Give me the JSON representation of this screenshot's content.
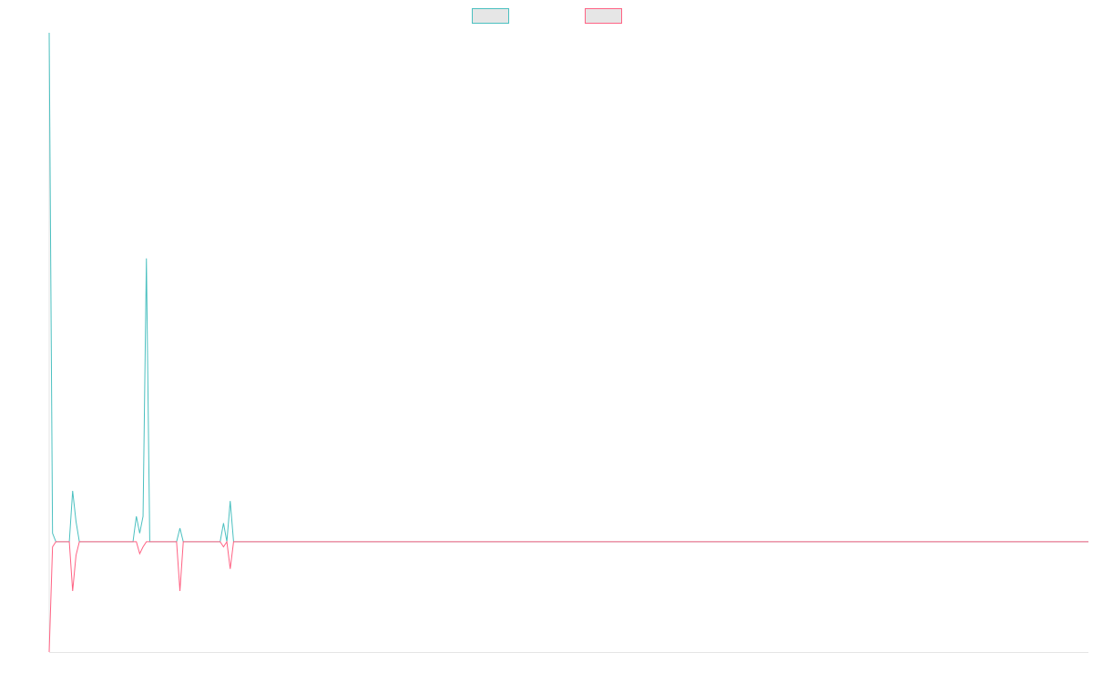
{
  "chart_data": {
    "type": "line",
    "title": "",
    "xlabel": "",
    "ylabel": "",
    "legend": {
      "placement": "top-center",
      "entries": [
        {
          "color": "#4bc0c0"
        },
        {
          "color": "#ff6384"
        }
      ]
    },
    "x": [
      0,
      1,
      2,
      3,
      4,
      5,
      6,
      7,
      8,
      9,
      10,
      11,
      12,
      13,
      14,
      15,
      16,
      17,
      18,
      19,
      20,
      21,
      22,
      23,
      24,
      25,
      26,
      27,
      28,
      29,
      30,
      31,
      32,
      33,
      34,
      35,
      36,
      37,
      38,
      39,
      40,
      41,
      42,
      43,
      44,
      45,
      46,
      47,
      48,
      49,
      50,
      51,
      52,
      53,
      54,
      55,
      56,
      57,
      58,
      59,
      60,
      61,
      62,
      63,
      64,
      65,
      66,
      67,
      68,
      69,
      70,
      71,
      72,
      73,
      74,
      75,
      76,
      77,
      78,
      79,
      80,
      81,
      82,
      83,
      84,
      85,
      86,
      87,
      88,
      89,
      90,
      91,
      92,
      93,
      94,
      95,
      96,
      97,
      98,
      99,
      100,
      101,
      102,
      103,
      104,
      105,
      106,
      107,
      108,
      109,
      110,
      111,
      112,
      113,
      114,
      115,
      116,
      117,
      118,
      119,
      120,
      121,
      122,
      123,
      124,
      125,
      126,
      127,
      128,
      129,
      130,
      131,
      132,
      133,
      134,
      135,
      136,
      137,
      138,
      139,
      140,
      141,
      142,
      143,
      144,
      145,
      146,
      147,
      148,
      149,
      150,
      151,
      152,
      153,
      154,
      155,
      156,
      157,
      158,
      159,
      160,
      161,
      162,
      163,
      164,
      165,
      166,
      167,
      168,
      169,
      170,
      171,
      172,
      173,
      174,
      175,
      176,
      177,
      178,
      179,
      180,
      181,
      182,
      183,
      184,
      185,
      186,
      187,
      188,
      189,
      190,
      191,
      192,
      193,
      194,
      195,
      196,
      197,
      198,
      199,
      200,
      201,
      202,
      203,
      204,
      205,
      206,
      207,
      208,
      209,
      210,
      211,
      212,
      213,
      214,
      215,
      216,
      217,
      218,
      219,
      220,
      221,
      222,
      223,
      224,
      225,
      226,
      227,
      228,
      229,
      230,
      231,
      232,
      233,
      234,
      235,
      236,
      237,
      238,
      239,
      240,
      241,
      242,
      243,
      244,
      245,
      246,
      247,
      248,
      249,
      250,
      251,
      252,
      253,
      254,
      255,
      256,
      257,
      258,
      259,
      260,
      261,
      262,
      263,
      264,
      265,
      266,
      267,
      268,
      269,
      270,
      271,
      272,
      273,
      274,
      275,
      276,
      277,
      278,
      279,
      280,
      281,
      282,
      283,
      284,
      285,
      286,
      287,
      288,
      289,
      290,
      291,
      292,
      293,
      294,
      295,
      296,
      297,
      298,
      299,
      300,
      301,
      302,
      303,
      304,
      305,
      306,
      307,
      308,
      309,
      310
    ],
    "series": [
      {
        "color": "#4bc0c0",
        "values": [
          300,
          5,
          0,
          0,
          0,
          0,
          0,
          30,
          12,
          0,
          0,
          0,
          0,
          0,
          0,
          0,
          0,
          0,
          0,
          0,
          0,
          0,
          0,
          0,
          0,
          0,
          15,
          5,
          15,
          167,
          0,
          0,
          0,
          0,
          0,
          0,
          0,
          0,
          0,
          8,
          0,
          0,
          0,
          0,
          0,
          0,
          0,
          0,
          0,
          0,
          0,
          0,
          11,
          0,
          24,
          0,
          0,
          0,
          0,
          0,
          0,
          0,
          0,
          0,
          0,
          0,
          0,
          0,
          0,
          0,
          0,
          0,
          0,
          0,
          0,
          0,
          0,
          0,
          0,
          0,
          0,
          0,
          0,
          0,
          0,
          0,
          0,
          0,
          0,
          0,
          0,
          0,
          0,
          0,
          0,
          0,
          0,
          0,
          0,
          0,
          0,
          0,
          0,
          0,
          0,
          0,
          0,
          0,
          0,
          0,
          0,
          0,
          0,
          0,
          0,
          0,
          0,
          0,
          0,
          0,
          0,
          0,
          0,
          0,
          0,
          0,
          0,
          0,
          0,
          0,
          0,
          0,
          0,
          0,
          0,
          0,
          0,
          0,
          0,
          0,
          0,
          0,
          0,
          0,
          0,
          0,
          0,
          0,
          0,
          0,
          0,
          0,
          0,
          0,
          0,
          0,
          0,
          0,
          0,
          0,
          0,
          0,
          0,
          0,
          0,
          0,
          0,
          0,
          0,
          0,
          0,
          0,
          0,
          0,
          0,
          0,
          0,
          0,
          0,
          0,
          0,
          0,
          0,
          0,
          0,
          0,
          0,
          0,
          0,
          0,
          0,
          0,
          0,
          0,
          0,
          0,
          0,
          0,
          0,
          0,
          0,
          0,
          0,
          0,
          0,
          0,
          0,
          0,
          0,
          0,
          0,
          0,
          0,
          0,
          0,
          0,
          0,
          0,
          0,
          0,
          0,
          0,
          0,
          0,
          0,
          0,
          0,
          0,
          0,
          0,
          0,
          0,
          0,
          0,
          0,
          0,
          0,
          0,
          0,
          0,
          0,
          0,
          0,
          0,
          0,
          0,
          0,
          0,
          0,
          0,
          0,
          0,
          0,
          0,
          0,
          0,
          0,
          0,
          0,
          0,
          0,
          0,
          0,
          0,
          0,
          0,
          0,
          0,
          0,
          0,
          0,
          0,
          0,
          0,
          0,
          0,
          0,
          0,
          0,
          0,
          0,
          0,
          0,
          0,
          0,
          0,
          0,
          0,
          0,
          0,
          0,
          0,
          0,
          0,
          0,
          0,
          0,
          0,
          0,
          0,
          0,
          0,
          0,
          0,
          0,
          0,
          0,
          0,
          0,
          0,
          0
        ]
      },
      {
        "color": "#ff6384",
        "values": [
          -65,
          -3,
          0,
          0,
          0,
          0,
          0,
          -29,
          -8,
          0,
          0,
          0,
          0,
          0,
          0,
          0,
          0,
          0,
          0,
          0,
          0,
          0,
          0,
          0,
          0,
          0,
          0,
          -7,
          -3,
          0,
          0,
          0,
          0,
          0,
          0,
          0,
          0,
          0,
          0,
          -29,
          0,
          0,
          0,
          0,
          0,
          0,
          0,
          0,
          0,
          0,
          0,
          0,
          -3,
          0,
          -16,
          0,
          0,
          0,
          0,
          0,
          0,
          0,
          0,
          0,
          0,
          0,
          0,
          0,
          0,
          0,
          0,
          0,
          0,
          0,
          0,
          0,
          0,
          0,
          0,
          0,
          0,
          0,
          0,
          0,
          0,
          0,
          0,
          0,
          0,
          0,
          0,
          0,
          0,
          0,
          0,
          0,
          0,
          0,
          0,
          0,
          0,
          0,
          0,
          0,
          0,
          0,
          0,
          0,
          0,
          0,
          0,
          0,
          0,
          0,
          0,
          0,
          0,
          0,
          0,
          0,
          0,
          0,
          0,
          0,
          0,
          0,
          0,
          0,
          0,
          0,
          0,
          0,
          0,
          0,
          0,
          0,
          0,
          0,
          0,
          0,
          0,
          0,
          0,
          0,
          0,
          0,
          0,
          0,
          0,
          0,
          0,
          0,
          0,
          0,
          0,
          0,
          0,
          0,
          0,
          0,
          0,
          0,
          0,
          0,
          0,
          0,
          0,
          0,
          0,
          0,
          0,
          0,
          0,
          0,
          0,
          0,
          0,
          0,
          0,
          0,
          0,
          0,
          0,
          0,
          0,
          0,
          0,
          0,
          0,
          0,
          0,
          0,
          0,
          0,
          0,
          0,
          0,
          0,
          0,
          0,
          0,
          0,
          0,
          0,
          0,
          0,
          0,
          0,
          0,
          0,
          0,
          0,
          0,
          0,
          0,
          0,
          0,
          0,
          0,
          0,
          0,
          0,
          0,
          0,
          0,
          0,
          0,
          0,
          0,
          0,
          0,
          0,
          0,
          0,
          0,
          0,
          0,
          0,
          0,
          0,
          0,
          0,
          0,
          0,
          0,
          0,
          0,
          0,
          0,
          0,
          0,
          0,
          0,
          0,
          0,
          0,
          0,
          0,
          0,
          0,
          0,
          0,
          0,
          0,
          0,
          0,
          0,
          0,
          0,
          0,
          0,
          0,
          0,
          0,
          0,
          0,
          0,
          0,
          0,
          0,
          0,
          0,
          0,
          0,
          0,
          0,
          0,
          0,
          0,
          0,
          0,
          0,
          0,
          0,
          0,
          0,
          0,
          0,
          0,
          0,
          0,
          0,
          0,
          0,
          0,
          0,
          0,
          0,
          0,
          0,
          0
        ]
      }
    ],
    "ylim": [
      -65,
      300
    ],
    "grid": false
  }
}
